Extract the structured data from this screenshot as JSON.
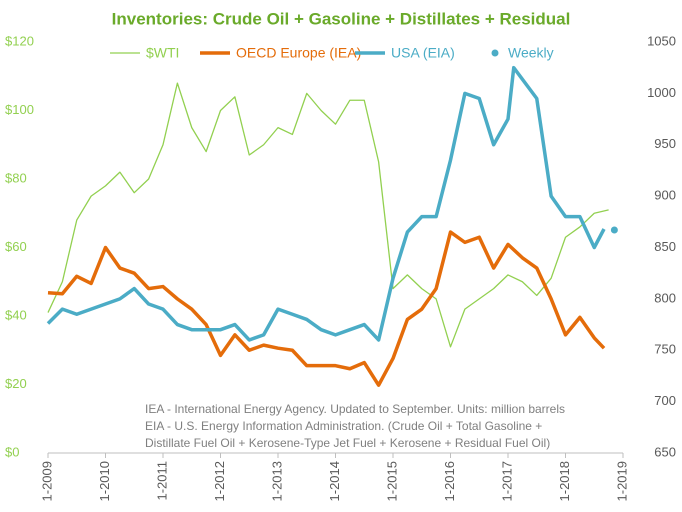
{
  "chart_data": {
    "type": "line",
    "title": "Inventories: Crude Oil + Gasoline + Distillates + Residual",
    "notes": [
      "IEA - International Energy Agency. Updated to September. Units: million barrels",
      "EIA - U.S. Energy Information Administration. (Crude Oil + Total Gasoline +",
      "Distillate Fuel Oil + Kerosene-Type Jet Fuel + Kerosene + Residual Fuel Oil)"
    ],
    "xlim": [
      2009,
      2019
    ],
    "xticks": [
      {
        "value": 2009,
        "label": "1-2009"
      },
      {
        "value": 2010,
        "label": "1-2010"
      },
      {
        "value": 2011,
        "label": "1-2011"
      },
      {
        "value": 2012,
        "label": "1-2012"
      },
      {
        "value": 2013,
        "label": "1-2013"
      },
      {
        "value": 2014,
        "label": "1-2014"
      },
      {
        "value": 2015,
        "label": "1-2015"
      },
      {
        "value": 2016,
        "label": "1-2016"
      },
      {
        "value": 2017,
        "label": "1-2017"
      },
      {
        "value": 2018,
        "label": "1-2018"
      },
      {
        "value": 2019,
        "label": "1-2019"
      }
    ],
    "ylim": [
      0,
      120
    ],
    "yticks": [
      {
        "value": 0,
        "label": "$0"
      },
      {
        "value": 20,
        "label": "$20"
      },
      {
        "value": 40,
        "label": "$40"
      },
      {
        "value": 60,
        "label": "$60"
      },
      {
        "value": 80,
        "label": "$80"
      },
      {
        "value": 100,
        "label": "$100"
      },
      {
        "value": 120,
        "label": "$120"
      }
    ],
    "y2lim": [
      650,
      1050
    ],
    "y2ticks": [
      650,
      700,
      750,
      800,
      850,
      900,
      950,
      1000,
      1050
    ],
    "series": [
      {
        "name": "$WTI",
        "color": "#92d050",
        "width": 1.3,
        "style": "line",
        "x": [
          2009.0,
          2009.25,
          2009.5,
          2009.75,
          2010.0,
          2010.25,
          2010.5,
          2010.75,
          2011.0,
          2011.25,
          2011.5,
          2011.75,
          2012.0,
          2012.25,
          2012.5,
          2012.75,
          2013.0,
          2013.25,
          2013.5,
          2013.75,
          2014.0,
          2014.25,
          2014.5,
          2014.75,
          2015.0,
          2015.25,
          2015.5,
          2015.75,
          2016.0,
          2016.25,
          2016.5,
          2016.75,
          2017.0,
          2017.25,
          2017.5,
          2017.75,
          2018.0,
          2018.25,
          2018.5,
          2018.75
        ],
        "values": [
          41,
          50,
          68,
          75,
          78,
          82,
          76,
          80,
          90,
          108,
          95,
          88,
          100,
          104,
          87,
          90,
          95,
          93,
          105,
          100,
          96,
          103,
          103,
          85,
          48,
          52,
          48,
          45,
          31,
          42,
          45,
          48,
          52,
          50,
          46,
          51,
          63,
          66,
          70,
          71
        ]
      },
      {
        "name": "OECD Europe (IEA)",
        "color": "#e46c0a",
        "width": 3.5,
        "style": "line",
        "axis": "y2",
        "x": [
          2009.0,
          2009.25,
          2009.5,
          2009.75,
          2010.0,
          2010.25,
          2010.5,
          2010.75,
          2011.0,
          2011.25,
          2011.5,
          2011.75,
          2012.0,
          2012.25,
          2012.5,
          2012.75,
          2013.0,
          2013.25,
          2013.5,
          2013.75,
          2014.0,
          2014.25,
          2014.5,
          2014.75,
          2015.0,
          2015.25,
          2015.5,
          2015.75,
          2016.0,
          2016.25,
          2016.5,
          2016.75,
          2017.0,
          2017.25,
          2017.5,
          2017.75,
          2018.0,
          2018.25,
          2018.5,
          2018.67
        ],
        "values": [
          806,
          805,
          822,
          815,
          850,
          830,
          825,
          810,
          812,
          800,
          790,
          775,
          745,
          765,
          750,
          755,
          752,
          750,
          735,
          735,
          735,
          732,
          738,
          716,
          742,
          780,
          790,
          810,
          865,
          855,
          860,
          830,
          853,
          840,
          830,
          800,
          765,
          782,
          762,
          752
        ]
      },
      {
        "name": "USA (EIA)",
        "color": "#4bacc6",
        "width": 3.5,
        "style": "line",
        "axis": "y2",
        "x": [
          2009.0,
          2009.25,
          2009.5,
          2009.75,
          2010.0,
          2010.25,
          2010.5,
          2010.75,
          2011.0,
          2011.25,
          2011.5,
          2011.75,
          2012.0,
          2012.25,
          2012.5,
          2012.75,
          2013.0,
          2013.25,
          2013.5,
          2013.75,
          2014.0,
          2014.25,
          2014.5,
          2014.75,
          2015.0,
          2015.25,
          2015.5,
          2015.75,
          2016.0,
          2016.25,
          2016.5,
          2016.75,
          2017.0,
          2017.1,
          2017.5,
          2017.75,
          2018.0,
          2018.25,
          2018.5,
          2018.67
        ],
        "values": [
          776,
          790,
          785,
          790,
          795,
          800,
          810,
          795,
          790,
          775,
          770,
          770,
          770,
          775,
          760,
          765,
          790,
          785,
          780,
          770,
          765,
          770,
          775,
          760,
          820,
          865,
          880,
          880,
          935,
          1000,
          995,
          950,
          975,
          1025,
          995,
          900,
          880,
          880,
          850,
          868
        ]
      },
      {
        "name": "Weekly",
        "color": "#4bacc6",
        "style": "marker",
        "axis": "y2",
        "x": [
          2018.85
        ],
        "values": [
          867
        ]
      }
    ]
  }
}
